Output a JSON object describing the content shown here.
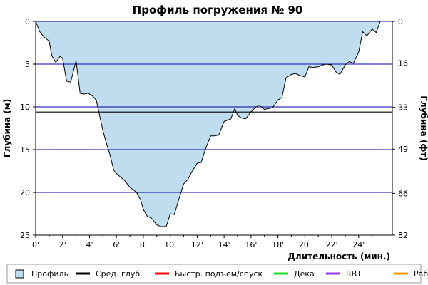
{
  "chart_data": {
    "type": "area",
    "title": "Профиль погружения № 90",
    "xlabel": "Длительность (мин.)",
    "ylabel_left": "Глубина (м)",
    "ylabel_right": "Глубина (фт)",
    "xlim": [
      0,
      26.5
    ],
    "ylim": [
      0,
      25
    ],
    "y_inverted": true,
    "x_ticks": [
      0,
      2,
      4,
      6,
      8,
      10,
      12,
      14,
      16,
      18,
      20,
      22,
      24
    ],
    "x_tick_labels": [
      "0'",
      "2'",
      "4'",
      "6'",
      "8'",
      "10'",
      "12'",
      "14'",
      "16'",
      "18'",
      "20'",
      "22'",
      "24'"
    ],
    "y_ticks_left": [
      0,
      5,
      10,
      15,
      20,
      25
    ],
    "y_tick_labels_left": [
      "0",
      "5",
      "10",
      "15",
      "20",
      "25"
    ],
    "y_ticks_right_m": [
      0,
      4.877,
      10.058,
      14.935,
      20.117,
      24.994
    ],
    "y_tick_labels_right": [
      "0",
      "16",
      "33",
      "49",
      "66",
      "82"
    ],
    "grid_lines_m": [
      5,
      10,
      15,
      20
    ],
    "grid_color": "#0000aa",
    "avg_depth": 10.6,
    "avg_color": "#000000",
    "fill_color": "#c0ddef",
    "line_color": "#000000",
    "profile": {
      "name": "Профиль",
      "x": [
        0,
        0.3,
        0.6,
        1.0,
        1.2,
        1.5,
        1.8,
        2.0,
        2.3,
        2.6,
        3.0,
        3.3,
        3.6,
        3.9,
        4.2,
        4.5,
        5.0,
        5.3,
        5.5,
        5.8,
        6.0,
        6.3,
        6.6,
        7.0,
        7.5,
        7.8,
        8.0,
        8.3,
        8.6,
        9.0,
        9.3,
        9.7,
        10.0,
        10.3,
        10.6,
        11.0,
        11.3,
        11.6,
        12.0,
        12.3,
        12.6,
        13.0,
        13.3,
        13.6,
        14.0,
        14.5,
        14.8,
        15.0,
        15.3,
        15.6,
        16.0,
        16.3,
        16.6,
        17.0,
        17.3,
        17.6,
        18.0,
        18.3,
        18.6,
        19.0,
        19.3,
        19.6,
        20.0,
        20.3,
        20.6,
        21.0,
        21.3,
        21.6,
        22.0,
        22.3,
        22.6,
        23.0,
        23.3,
        23.6,
        24.0,
        24.3,
        24.6,
        25.0,
        25.3,
        25.6
      ],
      "y": [
        0,
        1.2,
        1.8,
        2.3,
        4.0,
        4.8,
        4.1,
        4.3,
        7.0,
        7.1,
        4.6,
        8.4,
        8.5,
        8.4,
        8.7,
        9.2,
        12.8,
        14.5,
        15.5,
        17.4,
        17.8,
        18.2,
        18.6,
        19.4,
        20.0,
        20.9,
        22.0,
        22.8,
        23.0,
        23.8,
        24.0,
        24.0,
        22.5,
        22.6,
        21.0,
        19.0,
        18.5,
        17.6,
        16.6,
        16.5,
        15.0,
        13.4,
        13.4,
        13.3,
        11.7,
        11.4,
        10.2,
        11.0,
        11.3,
        11.4,
        10.6,
        10.1,
        9.8,
        10.3,
        10.2,
        10.1,
        9.2,
        8.9,
        6.6,
        6.2,
        6.1,
        6.3,
        6.5,
        5.3,
        5.4,
        5.3,
        5.1,
        5.0,
        5.1,
        5.9,
        6.2,
        5.1,
        4.7,
        4.9,
        3.6,
        1.2,
        1.7,
        0.9,
        1.3,
        0
      ]
    },
    "legend": [
      {
        "name": "Профиль",
        "kind": "box",
        "color": "#c0ddef"
      },
      {
        "name": "Сред. глуб.",
        "kind": "line",
        "color": "#000000"
      },
      {
        "name": "Быстр. подъем/спуск",
        "kind": "line",
        "color": "#ff0000"
      },
      {
        "name": "Дека",
        "kind": "line",
        "color": "#22dd22"
      },
      {
        "name": "RBT",
        "kind": "line",
        "color": "#9933ee"
      },
      {
        "name": "Раб.",
        "kind": "line",
        "color": "#ff9900"
      }
    ]
  }
}
